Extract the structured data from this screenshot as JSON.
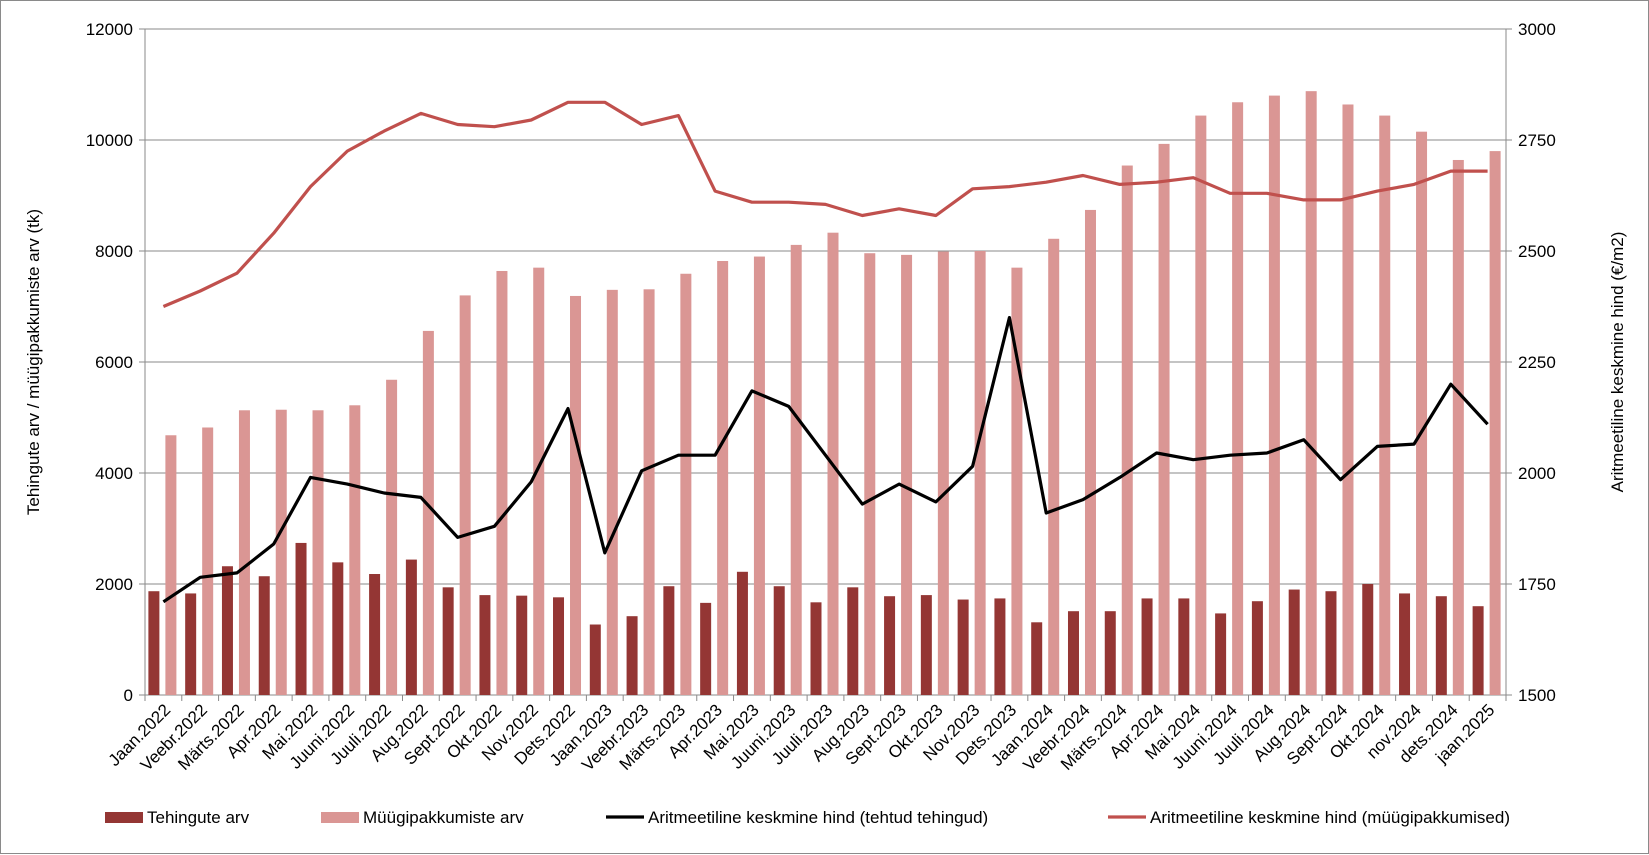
{
  "chart_data": {
    "type": "bar",
    "categories": [
      "Jaan.2022",
      "Veebr.2022",
      "Märts.2022",
      "Apr.2022",
      "Mai.2022",
      "Juuni.2022",
      "Juuli.2022",
      "Aug.2022",
      "Sept.2022",
      "Okt.2022",
      "Nov.2022",
      "Dets.2022",
      "Jaan.2023",
      "Veebr.2023",
      "Märts.2023",
      "Apr.2023",
      "Mai.2023",
      "Juuni.2023",
      "Juuli.2023",
      "Aug.2023",
      "Sept.2023",
      "Okt.2023",
      "Nov.2023",
      "Dets.2023",
      "Jaan.2024",
      "Veebr.2024",
      "Märts.2024",
      "Apr.2024",
      "Mai.2024",
      "Juuni.2024",
      "Juuli.2024",
      "Aug.2024",
      "Sept.2024",
      "Okt.2024",
      "nov.2024",
      "dets.2024",
      "jaan.2025"
    ],
    "series": [
      {
        "name": "Tehingute arv",
        "type": "bar",
        "axis": "left",
        "color": "#943634",
        "values": [
          1870,
          1830,
          2320,
          2140,
          2740,
          2390,
          2180,
          2440,
          1940,
          1800,
          1790,
          1760,
          1270,
          1420,
          1960,
          1660,
          2220,
          1960,
          1670,
          1940,
          1780,
          1800,
          1720,
          1740,
          1310,
          1510,
          1510,
          1740,
          1740,
          1470,
          1690,
          1900,
          1870,
          2000,
          1830,
          1780,
          1600
        ]
      },
      {
        "name": "Müügipakkumiste arv",
        "type": "bar",
        "axis": "left",
        "color": "#DA9694",
        "values": [
          4680,
          4820,
          5130,
          5140,
          5130,
          5220,
          5680,
          6560,
          7200,
          7640,
          7700,
          7190,
          7300,
          7310,
          7590,
          7820,
          7900,
          8110,
          8330,
          7960,
          7930,
          7990,
          8000,
          7700,
          8220,
          8740,
          9540,
          9930,
          10440,
          10680,
          10800,
          10880,
          10640,
          10440,
          10150,
          9640,
          9800
        ]
      },
      {
        "name": "Aritmeetiline keskmine hind (tehtud tehingud)",
        "type": "line",
        "axis": "right",
        "color": "#000000",
        "values": [
          1710,
          1765,
          1775,
          1840,
          1990,
          1975,
          1955,
          1945,
          1855,
          1880,
          1980,
          2145,
          1820,
          2005,
          2040,
          2040,
          2185,
          2150,
          2040,
          1930,
          1975,
          1935,
          2015,
          2350,
          1910,
          1940,
          1990,
          2045,
          2030,
          2040,
          2045,
          2075,
          1985,
          2060,
          2065,
          2200,
          2110
        ]
      },
      {
        "name": "Aritmeetiline keskmine hind (müügipakkumised)",
        "type": "line",
        "axis": "right",
        "color": "#C0504D",
        "values": [
          2375,
          2410,
          2450,
          2540,
          2645,
          2725,
          2770,
          2810,
          2785,
          2780,
          2795,
          2835,
          2835,
          2785,
          2805,
          2635,
          2610,
          2610,
          2605,
          2580,
          2595,
          2580,
          2640,
          2645,
          2655,
          2670,
          2650,
          2655,
          2665,
          2630,
          2630,
          2615,
          2615,
          2635,
          2650,
          2680,
          2680
        ]
      }
    ],
    "y_left": {
      "label": "Tehingute arv / müügipakkumiste arv (tk)",
      "range": [
        0,
        12000
      ],
      "ticks": [
        "0",
        "2000",
        "4000",
        "6000",
        "8000",
        "10000",
        "12000"
      ]
    },
    "y_right": {
      "label": "Aritmeetiline keskmine hind (€/m2)",
      "range": [
        1500,
        3000
      ],
      "ticks": [
        "1500",
        "1750",
        "2000",
        "2250",
        "2500",
        "2750",
        "3000"
      ]
    },
    "grid": true,
    "legend_position": "bottom"
  }
}
